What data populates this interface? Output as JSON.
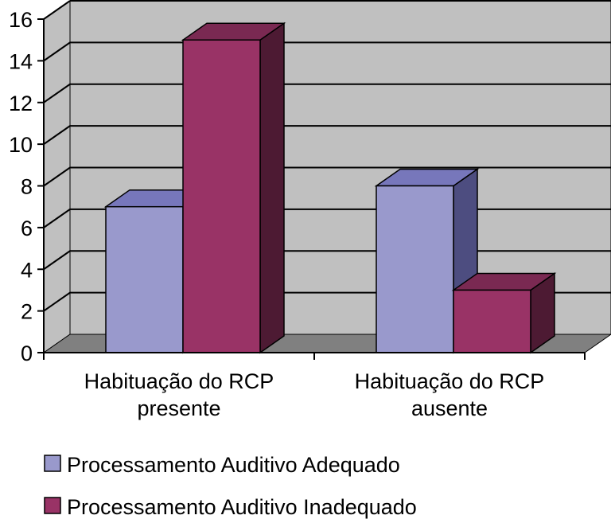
{
  "chart_data": {
    "type": "bar",
    "style": "3d-clustered-column",
    "categories": [
      "Habituação do RCP presente",
      "Habituação do RCP ausente"
    ],
    "category_lines": [
      [
        "Habituação do RCP",
        "presente"
      ],
      [
        "Habituação do RCP",
        "ausente"
      ]
    ],
    "series": [
      {
        "name": "Processamento Auditivo Adequado",
        "values": [
          7,
          8
        ],
        "color": "#9999cc",
        "side_color": "#4d4d80",
        "top_color": "#7777bb"
      },
      {
        "name": "Processamento Auditivo Inadequado",
        "values": [
          15,
          3
        ],
        "color": "#993366",
        "side_color": "#4d1a33",
        "top_color": "#7a2952"
      }
    ],
    "y_ticks": [
      "0",
      "2",
      "4",
      "6",
      "8",
      "10",
      "12",
      "14",
      "16"
    ],
    "ylim": [
      0,
      16
    ],
    "grid": true,
    "legend_position": "bottom",
    "colors": {
      "wall": "#c0c0c0",
      "floor": "#808080",
      "gridline": "#000000"
    }
  }
}
